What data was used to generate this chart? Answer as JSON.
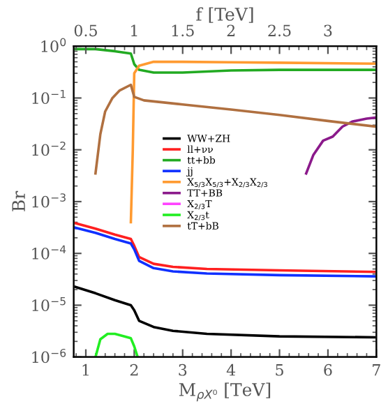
{
  "chart_data": {
    "type": "line",
    "xlabel": "M$_{ρX⁰}$ [TeV]",
    "ylabel": "Br",
    "x2label": "f [TeV]",
    "log": "y",
    "xlim": [
      0.75,
      7
    ],
    "xticks": [
      1,
      2,
      3,
      4,
      5,
      6,
      7
    ],
    "x2lim": [
      0.375,
      3.5
    ],
    "x2ticks": [
      0.5,
      1,
      1.5,
      2,
      2.5,
      3
    ],
    "ylim": [
      1e-06,
      1
    ],
    "yticks": [
      {
        "value": 1e-06,
        "label": "10$^{−6}$"
      },
      {
        "value": 1e-05,
        "label": "10$^{−5}$"
      },
      {
        "value": 0.0001,
        "label": "10$^{−4}$"
      },
      {
        "value": 0.001,
        "label": "10$^{−3}$"
      },
      {
        "value": 0.01,
        "label": "10$^{−2}$"
      },
      {
        "value": 0.1,
        "label": "10$^{−1}$"
      },
      {
        "value": 1,
        "label": "10$^{0}$"
      }
    ],
    "grid": false,
    "legend": "center",
    "marker": "none",
    "line_style": "solid",
    "series": [
      {
        "name": "WW+ZH",
        "color": "#000000",
        "x": [
          0.75,
          1.2,
          1.6,
          1.93,
          2.0,
          2.1,
          2.4,
          2.8,
          3.5,
          5,
          7
        ],
        "values": [
          2.3e-05,
          1.7e-05,
          1.25e-05,
          1e-05,
          8e-06,
          5e-06,
          3.8e-06,
          3.2e-06,
          2.8e-06,
          2.5e-06,
          2.4e-06
        ]
      },
      {
        "name": "ll+νν",
        "color": "#ff2020",
        "x": [
          0.75,
          1.2,
          1.6,
          1.93,
          2.0,
          2.1,
          2.4,
          2.8,
          3.5,
          5,
          7
        ],
        "values": [
          0.00039,
          0.0003,
          0.00023,
          0.00019,
          0.00014,
          8.5e-05,
          6.3e-05,
          5.5e-05,
          5e-05,
          4.7e-05,
          4.4e-05
        ]
      },
      {
        "name": "tt+bb",
        "color": "#22aa22",
        "x": [
          0.75,
          1.2,
          1.6,
          1.93,
          2.0,
          2.1,
          2.4,
          3,
          4,
          5,
          7
        ],
        "values": [
          0.88,
          0.88,
          0.8,
          0.72,
          0.45,
          0.35,
          0.31,
          0.31,
          0.34,
          0.35,
          0.35
        ]
      },
      {
        "name": "jj",
        "color": "#1030ff",
        "x": [
          0.75,
          1.2,
          1.6,
          1.93,
          2.0,
          2.1,
          2.4,
          2.8,
          3.5,
          5,
          7
        ],
        "values": [
          0.00032,
          0.00025,
          0.00019,
          0.000155,
          0.00012,
          7.2e-05,
          5.2e-05,
          4.5e-05,
          4.1e-05,
          3.8e-05,
          3.6e-05
        ]
      },
      {
        "name": "X$_{5/3}$X$_{5/3}$+X$_{2/3}$X$_{2/3}$",
        "color": "#ff9a30",
        "x": [
          1.93,
          1.97,
          2.0,
          2.1,
          2.4,
          3,
          4,
          5,
          7
        ],
        "values": [
          0.0004,
          0.01,
          0.3,
          0.42,
          0.5,
          0.5,
          0.49,
          0.48,
          0.46
        ]
      },
      {
        "name": "TT+BB",
        "color": "#8b1a8b",
        "x": [
          5.55,
          5.7,
          5.9,
          6.1,
          6.3,
          6.5,
          6.8,
          7
        ],
        "values": [
          0.0035,
          0.008,
          0.015,
          0.018,
          0.028,
          0.035,
          0.04,
          0.042
        ]
      },
      {
        "name": "X$_{2/3}$T",
        "color": "#ff44ff"
      },
      {
        "name": "X$_{2/3}$t",
        "color": "#22ee22",
        "x": [
          1.2,
          1.3,
          1.45,
          1.6,
          1.8,
          1.93,
          2.0,
          2.07
        ],
        "values": [
          1e-06,
          2.2e-06,
          2.8e-06,
          2.8e-06,
          2.5e-06,
          2.3e-06,
          1.6e-06,
          1e-06
        ]
      },
      {
        "name": "tT+bB",
        "color": "#b07040",
        "x": [
          1.2,
          1.3,
          1.4,
          1.55,
          1.7,
          1.93,
          2.0,
          2.2,
          3,
          4,
          5,
          6,
          7
        ],
        "values": [
          0.0035,
          0.02,
          0.055,
          0.1,
          0.14,
          0.18,
          0.105,
          0.09,
          0.075,
          0.06,
          0.047,
          0.036,
          0.028
        ]
      }
    ]
  }
}
